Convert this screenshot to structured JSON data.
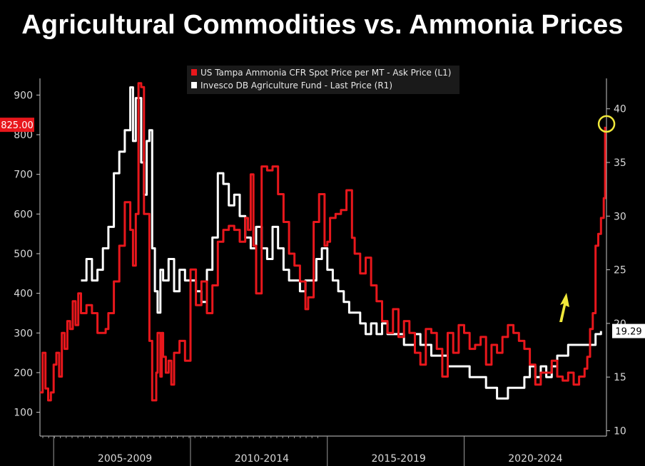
{
  "header": {
    "title": "Agricultural Commodities vs. Ammonia Prices"
  },
  "colors": {
    "background": "#000000",
    "ammonia": "#e8171c",
    "agri": "#ffffff",
    "highlight": "#f0e83a",
    "axis": "#c8c8c8"
  },
  "chart_data": {
    "type": "line",
    "title": "Agricultural Commodities vs. Ammonia Prices",
    "x_range": [
      2004.5,
      2025.2
    ],
    "x_axis_sections": [
      {
        "label": "2005-2009",
        "from": 2005.0,
        "to": 2010.0
      },
      {
        "label": "2010-2014",
        "from": 2010.0,
        "to": 2015.0
      },
      {
        "label": "2015-2019",
        "from": 2015.0,
        "to": 2020.0
      },
      {
        "label": "2020-2024",
        "from": 2020.0,
        "to": 2025.0
      }
    ],
    "y_left": {
      "range": [
        40,
        960
      ],
      "ticks": [
        "100",
        "200",
        "300",
        "400",
        "500",
        "600",
        "700",
        "800",
        "900"
      ]
    },
    "y_right": {
      "range": [
        9.5,
        43.5
      ],
      "ticks": [
        "10",
        "15",
        "20",
        "25",
        "30",
        "35",
        "40"
      ]
    },
    "legend_placement": "top-center",
    "grid": false,
    "series": [
      {
        "name": "US Tampa Ammonia CFR Spot Price per MT - Ask Price (L1)",
        "axis": "left",
        "last_value_label": "825.00",
        "x": [
          2004.5,
          2004.6,
          2004.7,
          2004.8,
          2004.9,
          2005.0,
          2005.1,
          2005.2,
          2005.3,
          2005.4,
          2005.5,
          2005.6,
          2005.7,
          2005.8,
          2005.9,
          2006.0,
          2006.2,
          2006.4,
          2006.6,
          2006.8,
          2006.9,
          2007.0,
          2007.2,
          2007.4,
          2007.6,
          2007.8,
          2007.9,
          2008.0,
          2008.1,
          2008.2,
          2008.3,
          2008.5,
          2008.6,
          2008.7,
          2008.75,
          2008.8,
          2008.9,
          2008.95,
          2009.0,
          2009.1,
          2009.2,
          2009.3,
          2009.4,
          2009.6,
          2009.8,
          2010.0,
          2010.2,
          2010.4,
          2010.6,
          2010.8,
          2011.0,
          2011.2,
          2011.4,
          2011.6,
          2011.8,
          2012.0,
          2012.1,
          2012.2,
          2012.3,
          2012.4,
          2012.6,
          2012.8,
          2013.0,
          2013.2,
          2013.4,
          2013.6,
          2013.8,
          2014.0,
          2014.2,
          2014.3,
          2014.5,
          2014.7,
          2014.9,
          2015.0,
          2015.1,
          2015.3,
          2015.5,
          2015.7,
          2015.9,
          2016.0,
          2016.2,
          2016.4,
          2016.6,
          2016.8,
          2017.0,
          2017.2,
          2017.4,
          2017.6,
          2017.8,
          2018.0,
          2018.2,
          2018.4,
          2018.6,
          2018.8,
          2019.0,
          2019.2,
          2019.4,
          2019.6,
          2019.8,
          2020.0,
          2020.2,
          2020.4,
          2020.6,
          2020.8,
          2021.0,
          2021.2,
          2021.4,
          2021.6,
          2021.8,
          2022.0,
          2022.2,
          2022.4,
          2022.6,
          2022.8,
          2023.0,
          2023.2,
          2023.4,
          2023.6,
          2023.8,
          2024.0,
          2024.2,
          2024.4,
          2024.5,
          2024.6,
          2024.7,
          2024.8,
          2024.9,
          2025.0,
          2025.1,
          2025.15
        ],
        "values": [
          150,
          250,
          160,
          130,
          150,
          220,
          250,
          190,
          300,
          260,
          330,
          310,
          380,
          320,
          400,
          350,
          370,
          350,
          300,
          300,
          310,
          350,
          430,
          520,
          630,
          560,
          470,
          600,
          930,
          920,
          600,
          280,
          130,
          130,
          200,
          300,
          190,
          300,
          240,
          200,
          230,
          170,
          250,
          280,
          230,
          460,
          370,
          430,
          350,
          420,
          530,
          560,
          570,
          560,
          530,
          590,
          560,
          700,
          520,
          400,
          720,
          710,
          720,
          650,
          580,
          500,
          470,
          430,
          360,
          390,
          580,
          650,
          520,
          530,
          590,
          600,
          610,
          660,
          540,
          500,
          450,
          490,
          420,
          380,
          330,
          300,
          360,
          290,
          330,
          300,
          250,
          220,
          310,
          300,
          260,
          190,
          300,
          250,
          320,
          300,
          260,
          270,
          290,
          220,
          270,
          250,
          290,
          320,
          300,
          280,
          260,
          220,
          170,
          200,
          200,
          230,
          190,
          180,
          200,
          170,
          190,
          210,
          240,
          310,
          350,
          520,
          550,
          590,
          640,
          820
        ]
      },
      {
        "name": "Invesco DB Agriculture Fund - Last Price (R1)",
        "axis": "right",
        "last_value_label": "19.29",
        "x": [
          2006.0,
          2006.2,
          2006.4,
          2006.6,
          2006.8,
          2007.0,
          2007.2,
          2007.4,
          2007.6,
          2007.8,
          2007.9,
          2008.0,
          2008.2,
          2008.3,
          2008.4,
          2008.5,
          2008.6,
          2008.7,
          2008.8,
          2008.9,
          2009.0,
          2009.2,
          2009.4,
          2009.6,
          2009.8,
          2010.0,
          2010.2,
          2010.4,
          2010.6,
          2010.8,
          2011.0,
          2011.2,
          2011.4,
          2011.6,
          2011.8,
          2012.0,
          2012.2,
          2012.4,
          2012.6,
          2012.8,
          2013.0,
          2013.2,
          2013.4,
          2013.6,
          2013.8,
          2014.0,
          2014.2,
          2014.4,
          2014.6,
          2014.8,
          2015.0,
          2015.2,
          2015.4,
          2015.6,
          2015.8,
          2016.0,
          2016.2,
          2016.4,
          2016.6,
          2016.8,
          2017.0,
          2017.2,
          2017.4,
          2017.6,
          2017.8,
          2018.0,
          2018.2,
          2018.4,
          2018.6,
          2018.8,
          2019.0,
          2019.2,
          2019.4,
          2019.6,
          2019.8,
          2020.0,
          2020.2,
          2020.4,
          2020.6,
          2020.8,
          2021.0,
          2021.2,
          2021.4,
          2021.6,
          2021.8,
          2022.0,
          2022.2,
          2022.4,
          2022.6,
          2022.8,
          2023.0,
          2023.2,
          2023.4,
          2023.6,
          2023.8,
          2024.0,
          2024.2,
          2024.4,
          2024.6,
          2024.8,
          2025.0
        ],
        "values": [
          24,
          26,
          24,
          25,
          27,
          29,
          34,
          36,
          38,
          42,
          37,
          41,
          35,
          32,
          37,
          38,
          27,
          23,
          21,
          25,
          24,
          26,
          23,
          25,
          24,
          24,
          23,
          22,
          25,
          28,
          34,
          33,
          31,
          32,
          30,
          28,
          27,
          29,
          27,
          26,
          29,
          27,
          25,
          24,
          24,
          23,
          24,
          24,
          26,
          27,
          25,
          24,
          23,
          22,
          21,
          21,
          20,
          19,
          20,
          19,
          20,
          19,
          19,
          19,
          18,
          18,
          19,
          18,
          18,
          17,
          17,
          17,
          16,
          16,
          16,
          16,
          15,
          15,
          15,
          14,
          14,
          13,
          13,
          14,
          14,
          14,
          15,
          16,
          15,
          16,
          15,
          16,
          17,
          17,
          18,
          18,
          18,
          18,
          18,
          19,
          19.29
        ]
      }
    ],
    "annotations": [
      "yellow circle at latest ammonia peak",
      "yellow arrow pointing up"
    ]
  }
}
